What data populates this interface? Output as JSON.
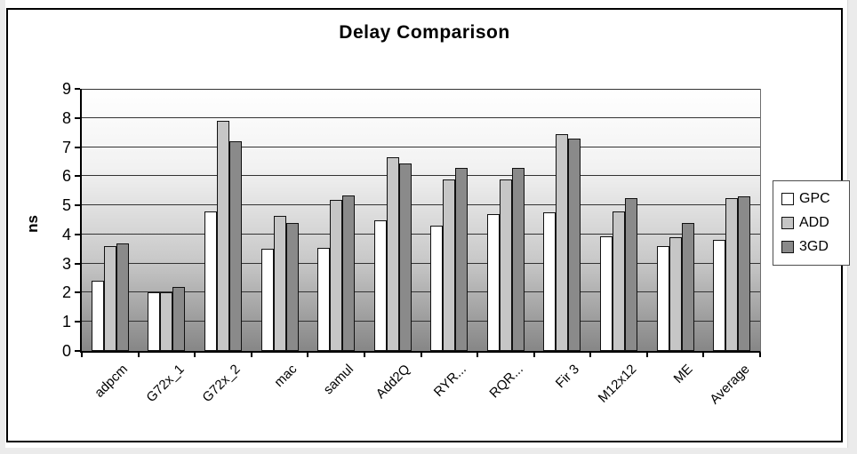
{
  "chart_data": {
    "type": "bar",
    "title": "Delay Comparison",
    "ylabel": "ns",
    "xlabel": "",
    "ylim": [
      0,
      9
    ],
    "yticks": [
      0,
      1,
      2,
      3,
      4,
      5,
      6,
      7,
      8,
      9
    ],
    "grid": "horizontal",
    "legend_position": "right",
    "plot_background_gradient": {
      "top": "#ffffff",
      "bottom": "#868686"
    },
    "categories": [
      "adpcm",
      "G72x_1",
      "G72x_2",
      "mac",
      "samul",
      "Add2Q",
      "RYR...",
      "RQR...",
      "Fir 3",
      "M12x12",
      "ME",
      "Average"
    ],
    "series": [
      {
        "name": "GPC",
        "color": "#ffffff",
        "values": [
          2.4,
          2.0,
          4.8,
          3.5,
          3.55,
          4.5,
          4.3,
          4.7,
          4.75,
          3.95,
          3.6,
          3.8
        ]
      },
      {
        "name": "ADD",
        "color": "#c6c6c6",
        "values": [
          3.6,
          2.0,
          7.9,
          4.65,
          5.2,
          6.65,
          5.9,
          5.9,
          7.45,
          4.8,
          3.9,
          5.25
        ]
      },
      {
        "name": "3GD",
        "color": "#8a8a8a",
        "values": [
          3.7,
          2.2,
          7.2,
          4.4,
          5.35,
          6.45,
          6.3,
          6.3,
          7.3,
          5.25,
          4.4,
          5.3
        ]
      }
    ]
  }
}
